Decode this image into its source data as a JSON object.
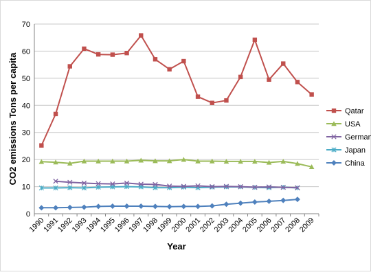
{
  "chart_data": {
    "type": "line",
    "title": "",
    "xlabel": "Year",
    "ylabel": "CO2 emissions Tons per capita",
    "ylim": [
      0,
      70
    ],
    "yticks": [
      0,
      10,
      20,
      30,
      40,
      50,
      60,
      70
    ],
    "grid": "horizontal",
    "legend": "right",
    "categories": [
      "1990",
      "1991",
      "1992",
      "1993",
      "1994",
      "1995",
      "1996",
      "1997",
      "1998",
      "1999",
      "2000",
      "2001",
      "2002",
      "2003",
      "2004",
      "2005",
      "2006",
      "2007",
      "2008",
      "2009"
    ],
    "series": [
      {
        "name": "Qatar",
        "color": "#c0504d",
        "marker": "square",
        "values": [
          25.2,
          36.8,
          54.4,
          60.9,
          58.8,
          58.7,
          59.3,
          65.8,
          57.0,
          53.3,
          56.3,
          43.2,
          40.9,
          41.8,
          50.5,
          64.2,
          49.5,
          55.4,
          48.6,
          44.0
        ]
      },
      {
        "name": "USA",
        "color": "#9bbb59",
        "marker": "triangle",
        "values": [
          19.2,
          19.0,
          18.6,
          19.4,
          19.4,
          19.4,
          19.4,
          19.7,
          19.5,
          19.5,
          20.0,
          19.4,
          19.4,
          19.3,
          19.3,
          19.3,
          18.9,
          19.3,
          18.5,
          17.3
        ]
      },
      {
        "name": "Germany",
        "color": "#8064a2",
        "marker": "x",
        "values": [
          null,
          12.0,
          11.6,
          11.3,
          11.1,
          11.0,
          11.3,
          10.9,
          10.8,
          10.2,
          10.1,
          10.3,
          10.0,
          10.1,
          10.0,
          9.8,
          9.9,
          9.7,
          9.6,
          null
        ]
      },
      {
        "name": "Japan",
        "color": "#4bacc6",
        "marker": "star",
        "values": [
          9.5,
          9.5,
          9.6,
          9.5,
          9.8,
          9.9,
          10.0,
          9.9,
          9.6,
          9.6,
          9.8,
          9.6,
          9.8,
          9.9,
          9.9,
          9.7,
          9.6,
          9.8,
          9.5,
          null
        ]
      },
      {
        "name": "China",
        "color": "#4f81bd",
        "marker": "diamond",
        "values": [
          2.2,
          2.2,
          2.3,
          2.4,
          2.7,
          2.8,
          2.8,
          2.8,
          2.7,
          2.6,
          2.7,
          2.7,
          2.9,
          3.5,
          3.9,
          4.3,
          4.6,
          4.9,
          5.3,
          null
        ]
      }
    ]
  }
}
